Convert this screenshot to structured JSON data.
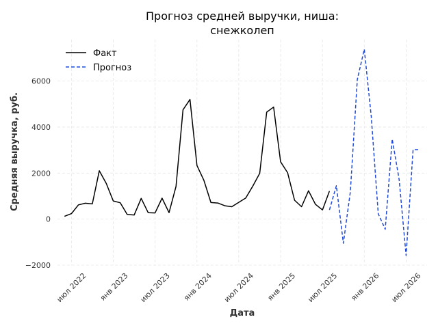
{
  "chart_data": {
    "type": "line",
    "title_lines": [
      "Прогноз средней выручки, ниша:",
      "снежколеп"
    ],
    "xlabel": "Дата",
    "ylabel": "Средняя выручка, руб.",
    "x_ticks": [
      "июл 2022",
      "янв 2023",
      "июл 2023",
      "янв 2024",
      "июл 2024",
      "янв 2025",
      "июл 2025",
      "янв 2026",
      "июл 2026"
    ],
    "x_tick_dates": [
      "2022-07",
      "2023-01",
      "2023-07",
      "2024-01",
      "2024-07",
      "2025-01",
      "2025-07",
      "2026-01",
      "2026-07"
    ],
    "xlim": [
      "2022-05",
      "2026-10"
    ],
    "y_ticks": [
      -2000,
      0,
      2000,
      4000,
      6000
    ],
    "y_tick_labels": [
      "−2000",
      "0",
      "2000",
      "4000",
      "6000"
    ],
    "ylim": [
      -2000,
      7800
    ],
    "grid": true,
    "legend_placement": "top-left",
    "series": [
      {
        "name": "Факт",
        "color": "#000000",
        "dash": "solid",
        "x": [
          "2022-06",
          "2022-07",
          "2022-08",
          "2022-09",
          "2022-10",
          "2022-11",
          "2022-12",
          "2023-01",
          "2023-02",
          "2023-03",
          "2023-04",
          "2023-05",
          "2023-06",
          "2023-07",
          "2023-08",
          "2023-09",
          "2023-10",
          "2023-11",
          "2023-12",
          "2024-01",
          "2024-02",
          "2024-03",
          "2024-04",
          "2024-05",
          "2024-06",
          "2024-07",
          "2024-08",
          "2024-09",
          "2024-10",
          "2024-11",
          "2024-12",
          "2025-01",
          "2025-02",
          "2025-03",
          "2025-04",
          "2025-05",
          "2025-06",
          "2025-07",
          "2025-08"
        ],
        "values": [
          120,
          240,
          620,
          690,
          660,
          2100,
          1550,
          790,
          710,
          200,
          180,
          900,
          280,
          270,
          910,
          280,
          1420,
          4750,
          5200,
          2330,
          1680,
          720,
          700,
          580,
          540,
          730,
          920,
          1430,
          1990,
          4650,
          4870,
          2490,
          2020,
          820,
          540,
          1230,
          640,
          400,
          1220
        ]
      },
      {
        "name": "Прогноз",
        "color": "#1f49d6",
        "dash": "dashed",
        "x": [
          "2025-08",
          "2025-09",
          "2025-10",
          "2025-11",
          "2025-12",
          "2026-01",
          "2026-02",
          "2026-03",
          "2026-04",
          "2026-05",
          "2026-06",
          "2026-07",
          "2026-08",
          "2026-09"
        ],
        "values": [
          400,
          1450,
          -1050,
          1180,
          6070,
          7380,
          4450,
          230,
          -440,
          3480,
          1720,
          -1580,
          3020,
          3020
        ]
      }
    ]
  }
}
